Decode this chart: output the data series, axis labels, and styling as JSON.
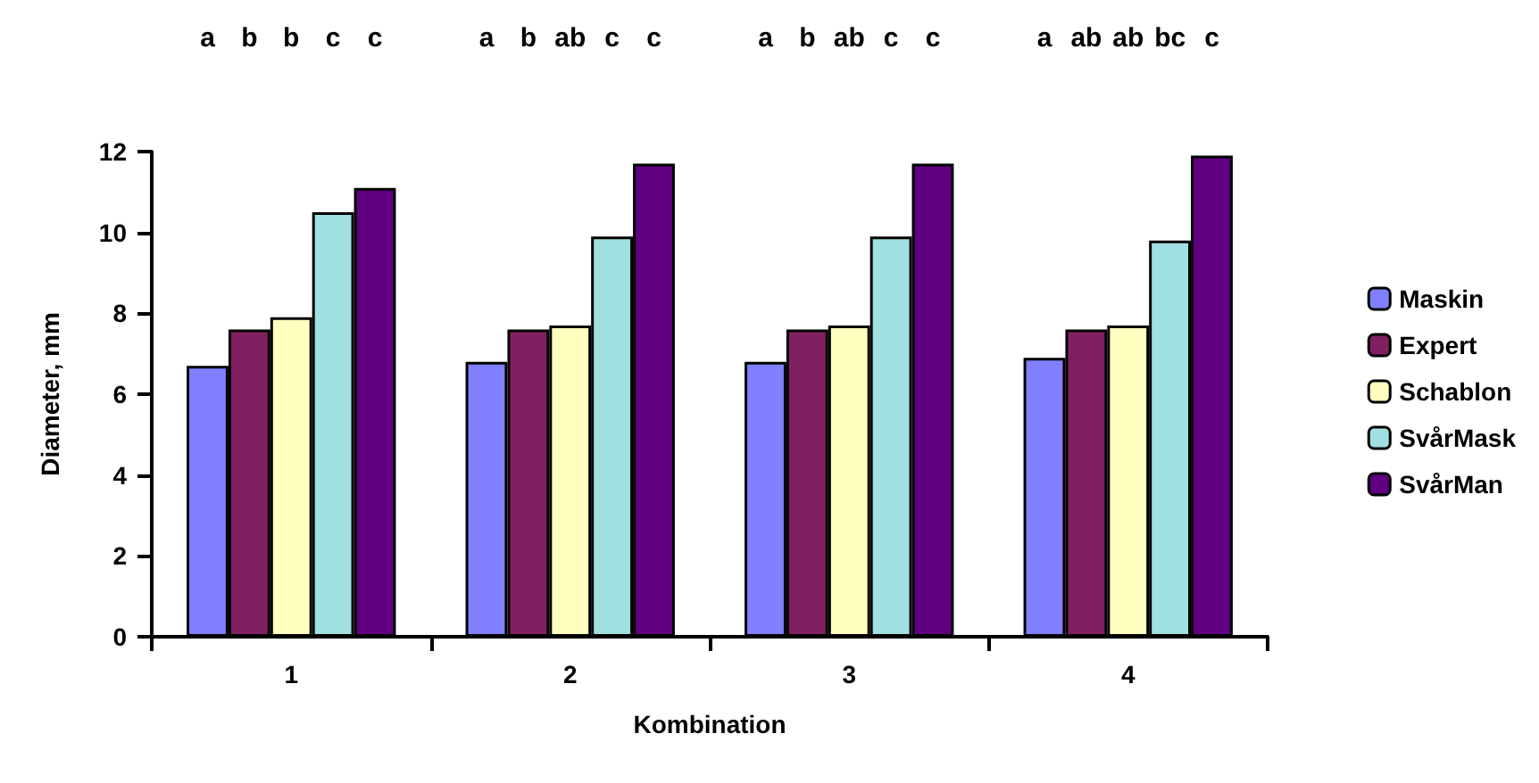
{
  "chart_data": {
    "type": "bar",
    "xlabel": "Kombination",
    "ylabel": "Diameter, mm",
    "categories": [
      "1",
      "2",
      "3",
      "4"
    ],
    "series": [
      {
        "name": "Maskin",
        "color": "#8080ff",
        "values": [
          6.7,
          6.8,
          6.8,
          6.9
        ]
      },
      {
        "name": "Expert",
        "color": "#802060",
        "values": [
          7.6,
          7.6,
          7.6,
          7.6
        ]
      },
      {
        "name": "Schablon",
        "color": "#ffffc0",
        "values": [
          7.9,
          7.7,
          7.7,
          7.7
        ]
      },
      {
        "name": "SvårMask",
        "color": "#a0e0e0",
        "values": [
          10.5,
          9.9,
          9.9,
          9.8
        ]
      },
      {
        "name": "SvårMan",
        "color": "#600080",
        "values": [
          11.1,
          11.7,
          11.7,
          11.9
        ]
      }
    ],
    "annotations": [
      "a b b c c",
      "a b ab c c",
      "a b ab c c",
      "a ab ab bc c"
    ],
    "ylim": [
      0,
      12
    ],
    "yticks": [
      0,
      2,
      4,
      6,
      8,
      10,
      12
    ],
    "grid": false,
    "legend": "right"
  }
}
